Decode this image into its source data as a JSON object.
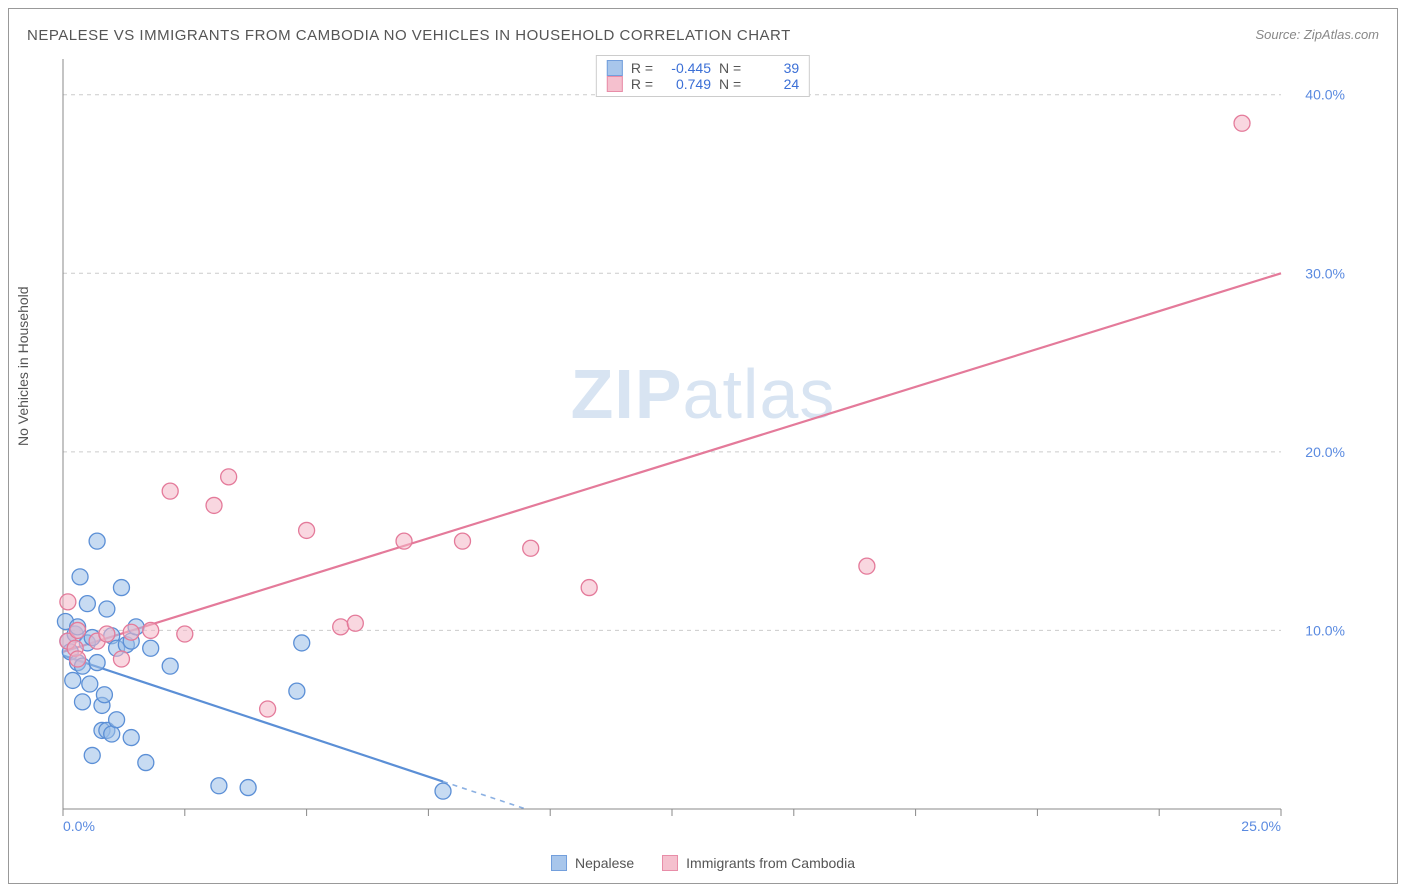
{
  "title": "NEPALESE VS IMMIGRANTS FROM CAMBODIA NO VEHICLES IN HOUSEHOLD CORRELATION CHART",
  "source": "Source: ZipAtlas.com",
  "y_axis_label": "No Vehicles in Household",
  "watermark": {
    "bold": "ZIP",
    "light": "atlas"
  },
  "chart": {
    "type": "scatter",
    "xlim": [
      0,
      25
    ],
    "ylim": [
      0,
      42
    ],
    "x_ticks": [
      0,
      2.5,
      5,
      7.5,
      10,
      12.5,
      15,
      17.5,
      20,
      22.5,
      25
    ],
    "x_tick_labels_shown": {
      "0": "0.0%",
      "25": "25.0%"
    },
    "y_ticks": [
      10,
      20,
      30,
      40
    ],
    "y_tick_labels": {
      "10": "10.0%",
      "20": "20.0%",
      "30": "30.0%",
      "40": "40.0%"
    },
    "background_color": "#ffffff",
    "grid_color": "#cccccc",
    "axis_color": "#888888",
    "tick_label_color": "#5a8ae0",
    "series": [
      {
        "name": "Nepalese",
        "color_fill": "#99bde8",
        "color_stroke": "#5b8fd6",
        "fill_opacity": 0.55,
        "marker_radius": 8,
        "r_value": "-0.445",
        "n_value": "39",
        "trend": {
          "x1": 0,
          "y1": 8.6,
          "x2": 9.5,
          "y2": 0,
          "dash_after_x": 7.8
        },
        "points": [
          [
            0.05,
            10.5
          ],
          [
            0.1,
            9.4
          ],
          [
            0.15,
            8.8
          ],
          [
            0.2,
            7.2
          ],
          [
            0.25,
            9.8
          ],
          [
            0.3,
            10.2
          ],
          [
            0.3,
            8.2
          ],
          [
            0.35,
            13
          ],
          [
            0.4,
            6.0
          ],
          [
            0.4,
            8.0
          ],
          [
            0.5,
            9.3
          ],
          [
            0.5,
            11.5
          ],
          [
            0.55,
            7.0
          ],
          [
            0.6,
            9.6
          ],
          [
            0.6,
            3.0
          ],
          [
            0.7,
            8.2
          ],
          [
            0.7,
            15
          ],
          [
            0.8,
            4.4
          ],
          [
            0.8,
            5.8
          ],
          [
            0.85,
            6.4
          ],
          [
            0.9,
            11.2
          ],
          [
            0.9,
            4.4
          ],
          [
            1.0,
            4.2
          ],
          [
            1.0,
            9.7
          ],
          [
            1.1,
            9.0
          ],
          [
            1.1,
            5.0
          ],
          [
            1.2,
            12.4
          ],
          [
            1.3,
            9.2
          ],
          [
            1.4,
            4.0
          ],
          [
            1.4,
            9.4
          ],
          [
            1.5,
            10.2
          ],
          [
            1.7,
            2.6
          ],
          [
            1.8,
            9.0
          ],
          [
            2.2,
            8.0
          ],
          [
            3.2,
            1.3
          ],
          [
            3.8,
            1.2
          ],
          [
            4.8,
            6.6
          ],
          [
            4.9,
            9.3
          ],
          [
            7.8,
            1.0
          ]
        ]
      },
      {
        "name": "Immigrants from Cambodia",
        "color_fill": "#f4b6c6",
        "color_stroke": "#e47a9a",
        "fill_opacity": 0.55,
        "marker_radius": 8,
        "r_value": "0.749",
        "n_value": "24",
        "trend": {
          "x1": 0,
          "y1": 8.8,
          "x2": 25,
          "y2": 30
        },
        "points": [
          [
            0.1,
            11.6
          ],
          [
            0.1,
            9.4
          ],
          [
            0.25,
            9.0
          ],
          [
            0.3,
            10.0
          ],
          [
            0.3,
            8.4
          ],
          [
            0.7,
            9.4
          ],
          [
            0.9,
            9.8
          ],
          [
            1.2,
            8.4
          ],
          [
            1.4,
            9.9
          ],
          [
            1.8,
            10.0
          ],
          [
            2.2,
            17.8
          ],
          [
            2.5,
            9.8
          ],
          [
            3.1,
            17.0
          ],
          [
            3.4,
            18.6
          ],
          [
            4.2,
            5.6
          ],
          [
            5.0,
            15.6
          ],
          [
            5.7,
            10.2
          ],
          [
            6.0,
            10.4
          ],
          [
            7.0,
            15.0
          ],
          [
            8.2,
            15.0
          ],
          [
            9.6,
            14.6
          ],
          [
            10.8,
            12.4
          ],
          [
            16.5,
            13.6
          ],
          [
            24.2,
            38.4
          ]
        ]
      }
    ]
  },
  "legend_labels": {
    "r": "R =",
    "n": "N ="
  }
}
